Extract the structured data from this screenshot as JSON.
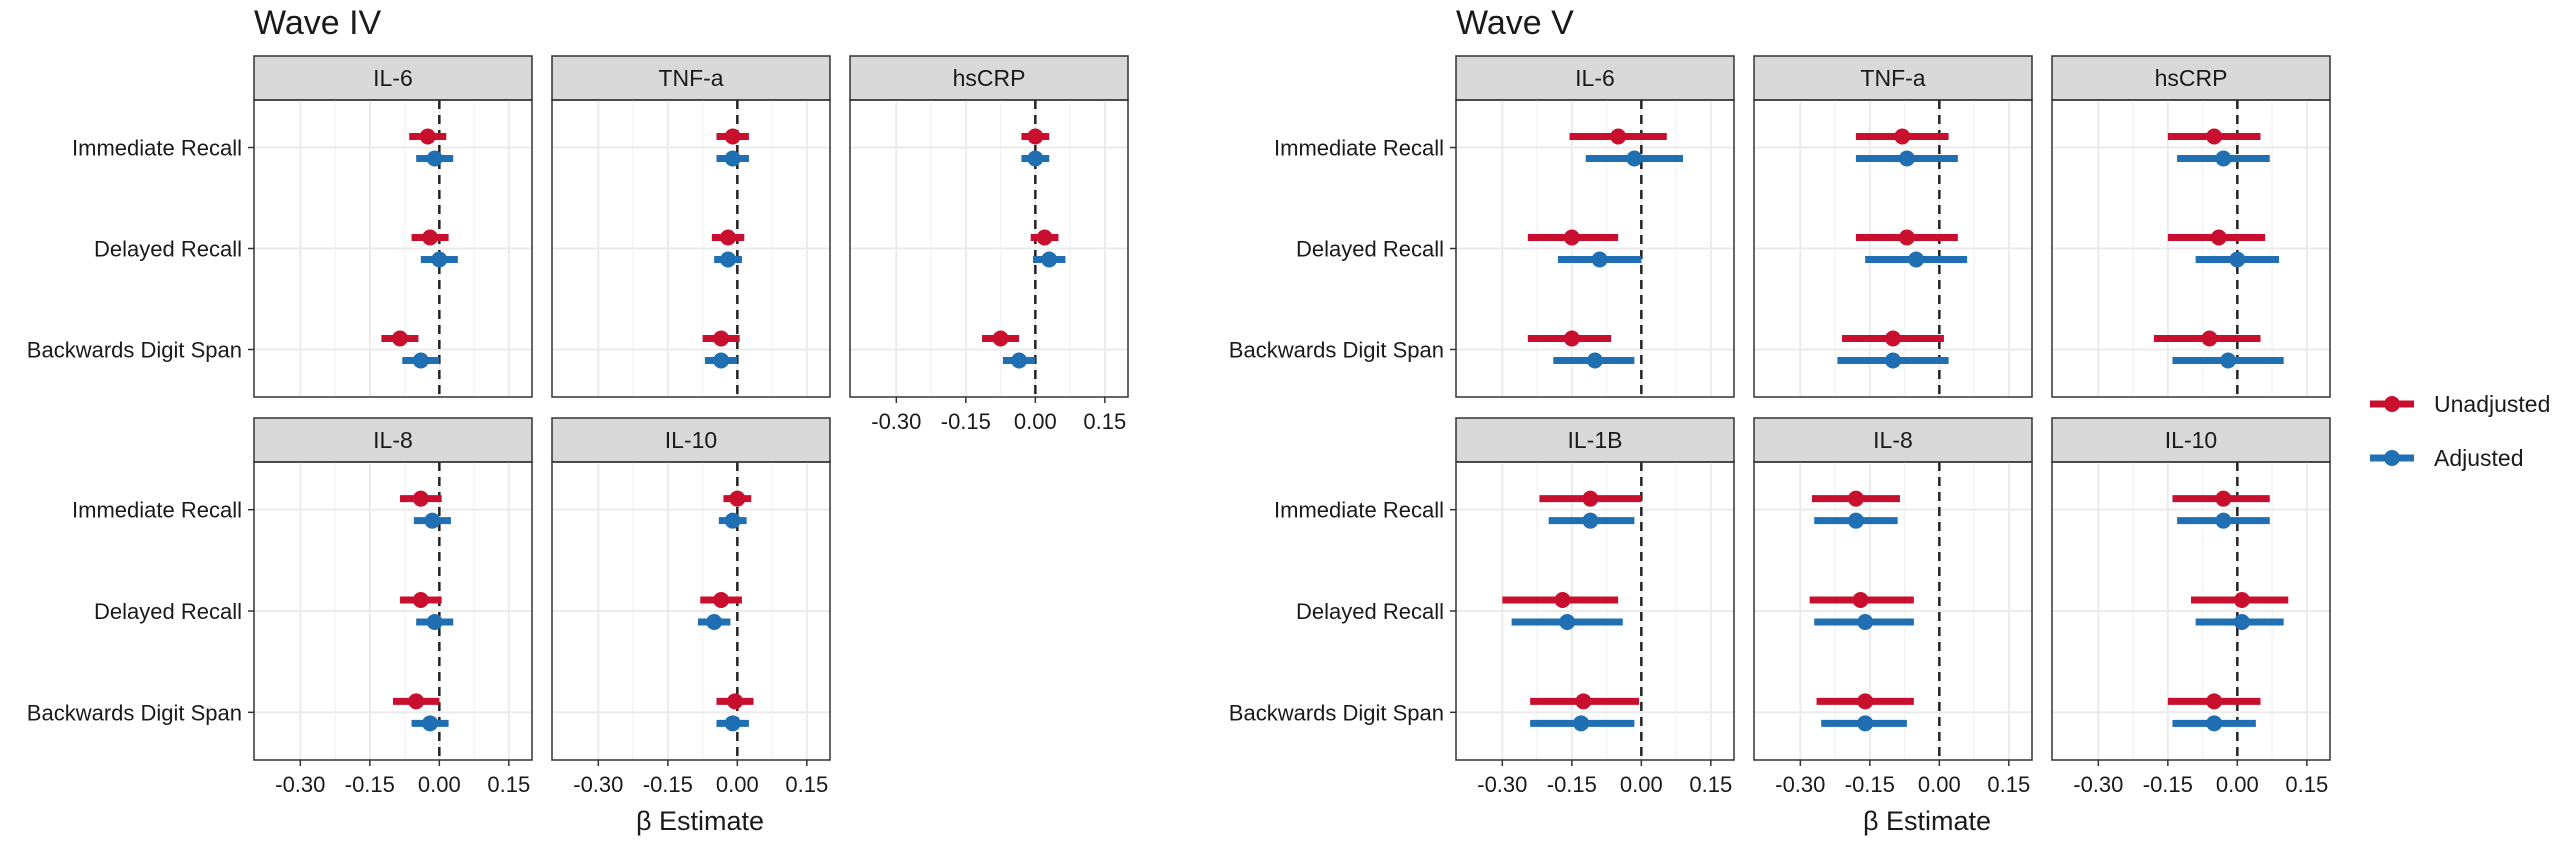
{
  "colors": {
    "unadjusted": "#C8102E",
    "adjusted": "#1F6FB2",
    "strip_fill": "#D9D9D9",
    "grid_major": "#EBEBEB",
    "grid_minor": "#F5F5F5",
    "panel_border": "#333333",
    "text": "#1A1A1A"
  },
  "legend": {
    "position": "right",
    "items": [
      "Unadjusted",
      "Adjusted"
    ]
  },
  "chart_data": [
    {
      "type": "scatter",
      "subtype": "forest-plot (point estimate with confidence interval)",
      "title": "Wave IV",
      "xlabel": "β Estimate",
      "ylabel": "",
      "xlim": [
        -0.4,
        0.2
      ],
      "xticks": [
        "-0.30",
        "-0.15",
        "0.00",
        "0.15"
      ],
      "reference_line_x": 0,
      "grid": true,
      "outcomes": [
        "Immediate Recall",
        "Delayed Recall",
        "Backwards Digit Span"
      ],
      "panels": [
        {
          "name": "IL-6",
          "series": [
            {
              "name": "Unadjusted",
              "estimate": [
                -0.025,
                -0.02,
                -0.085
              ],
              "lower": [
                -0.065,
                -0.06,
                -0.125
              ],
              "upper": [
                0.015,
                0.02,
                -0.045
              ]
            },
            {
              "name": "Adjusted",
              "estimate": [
                -0.01,
                0.0,
                -0.04
              ],
              "lower": [
                -0.05,
                -0.04,
                -0.08
              ],
              "upper": [
                0.03,
                0.04,
                0.0
              ]
            }
          ]
        },
        {
          "name": "TNF-a",
          "series": [
            {
              "name": "Unadjusted",
              "estimate": [
                -0.01,
                -0.02,
                -0.035
              ],
              "lower": [
                -0.045,
                -0.055,
                -0.075
              ],
              "upper": [
                0.025,
                0.015,
                0.005
              ]
            },
            {
              "name": "Adjusted",
              "estimate": [
                -0.01,
                -0.02,
                -0.035
              ],
              "lower": [
                -0.045,
                -0.05,
                -0.07
              ],
              "upper": [
                0.025,
                0.01,
                0.0
              ]
            }
          ]
        },
        {
          "name": "hsCRP",
          "series": [
            {
              "name": "Unadjusted",
              "estimate": [
                0.0,
                0.02,
                -0.075
              ],
              "lower": [
                -0.03,
                -0.01,
                -0.115
              ],
              "upper": [
                0.03,
                0.05,
                -0.035
              ]
            },
            {
              "name": "Adjusted",
              "estimate": [
                0.0,
                0.03,
                -0.035
              ],
              "lower": [
                -0.03,
                -0.005,
                -0.07
              ],
              "upper": [
                0.03,
                0.065,
                0.0
              ]
            }
          ]
        },
        {
          "name": "IL-8",
          "series": [
            {
              "name": "Unadjusted",
              "estimate": [
                -0.04,
                -0.04,
                -0.05
              ],
              "lower": [
                -0.085,
                -0.085,
                -0.1
              ],
              "upper": [
                0.005,
                0.005,
                0.0
              ]
            },
            {
              "name": "Adjusted",
              "estimate": [
                -0.015,
                -0.01,
                -0.02
              ],
              "lower": [
                -0.055,
                -0.05,
                -0.06
              ],
              "upper": [
                0.025,
                0.03,
                0.02
              ]
            }
          ]
        },
        {
          "name": "IL-10",
          "series": [
            {
              "name": "Unadjusted",
              "estimate": [
                0.0,
                -0.035,
                -0.005
              ],
              "lower": [
                -0.03,
                -0.08,
                -0.045
              ],
              "upper": [
                0.03,
                0.01,
                0.035
              ]
            },
            {
              "name": "Adjusted",
              "estimate": [
                -0.01,
                -0.05,
                -0.01
              ],
              "lower": [
                -0.04,
                -0.085,
                -0.045
              ],
              "upper": [
                0.02,
                -0.015,
                0.025
              ]
            }
          ]
        }
      ]
    },
    {
      "type": "scatter",
      "subtype": "forest-plot (point estimate with confidence interval)",
      "title": "Wave V",
      "xlabel": "β Estimate",
      "ylabel": "",
      "xlim": [
        -0.4,
        0.2
      ],
      "xticks": [
        "-0.30",
        "-0.15",
        "0.00",
        "0.15"
      ],
      "reference_line_x": 0,
      "grid": true,
      "outcomes": [
        "Immediate Recall",
        "Delayed Recall",
        "Backwards Digit Span"
      ],
      "panels": [
        {
          "name": "IL-6",
          "series": [
            {
              "name": "Unadjusted",
              "estimate": [
                -0.05,
                -0.15,
                -0.15
              ],
              "lower": [
                -0.155,
                -0.245,
                -0.245
              ],
              "upper": [
                0.055,
                -0.05,
                -0.065
              ]
            },
            {
              "name": "Adjusted",
              "estimate": [
                -0.015,
                -0.09,
                -0.1
              ],
              "lower": [
                -0.12,
                -0.18,
                -0.19
              ],
              "upper": [
                0.09,
                0.0,
                -0.015
              ]
            }
          ]
        },
        {
          "name": "TNF-a",
          "series": [
            {
              "name": "Unadjusted",
              "estimate": [
                -0.08,
                -0.07,
                -0.1
              ],
              "lower": [
                -0.18,
                -0.18,
                -0.21
              ],
              "upper": [
                0.02,
                0.04,
                0.01
              ]
            },
            {
              "name": "Adjusted",
              "estimate": [
                -0.07,
                -0.05,
                -0.1
              ],
              "lower": [
                -0.18,
                -0.16,
                -0.22
              ],
              "upper": [
                0.04,
                0.06,
                0.02
              ]
            }
          ]
        },
        {
          "name": "hsCRP",
          "series": [
            {
              "name": "Unadjusted",
              "estimate": [
                -0.05,
                -0.04,
                -0.06
              ],
              "lower": [
                -0.15,
                -0.15,
                -0.18
              ],
              "upper": [
                0.05,
                0.06,
                0.05
              ]
            },
            {
              "name": "Adjusted",
              "estimate": [
                -0.03,
                0.0,
                -0.02
              ],
              "lower": [
                -0.13,
                -0.09,
                -0.14
              ],
              "upper": [
                0.07,
                0.09,
                0.1
              ]
            }
          ]
        },
        {
          "name": "IL-1B",
          "series": [
            {
              "name": "Unadjusted",
              "estimate": [
                -0.11,
                -0.17,
                -0.125
              ],
              "lower": [
                -0.22,
                -0.3,
                -0.24
              ],
              "upper": [
                0.0,
                -0.05,
                -0.005
              ]
            },
            {
              "name": "Adjusted",
              "estimate": [
                -0.11,
                -0.16,
                -0.13
              ],
              "lower": [
                -0.2,
                -0.28,
                -0.24
              ],
              "upper": [
                -0.015,
                -0.04,
                -0.015
              ]
            }
          ]
        },
        {
          "name": "IL-8",
          "series": [
            {
              "name": "Unadjusted",
              "estimate": [
                -0.18,
                -0.17,
                -0.16
              ],
              "lower": [
                -0.275,
                -0.28,
                -0.265
              ],
              "upper": [
                -0.085,
                -0.055,
                -0.055
              ]
            },
            {
              "name": "Adjusted",
              "estimate": [
                -0.18,
                -0.16,
                -0.16
              ],
              "lower": [
                -0.27,
                -0.27,
                -0.255
              ],
              "upper": [
                -0.09,
                -0.055,
                -0.07
              ]
            }
          ]
        },
        {
          "name": "IL-10",
          "series": [
            {
              "name": "Unadjusted",
              "estimate": [
                -0.03,
                0.01,
                -0.05
              ],
              "lower": [
                -0.14,
                -0.1,
                -0.15
              ],
              "upper": [
                0.07,
                0.11,
                0.05
              ]
            },
            {
              "name": "Adjusted",
              "estimate": [
                -0.03,
                0.01,
                -0.05
              ],
              "lower": [
                -0.13,
                -0.09,
                -0.14
              ],
              "upper": [
                0.07,
                0.1,
                0.04
              ]
            }
          ]
        }
      ]
    }
  ]
}
